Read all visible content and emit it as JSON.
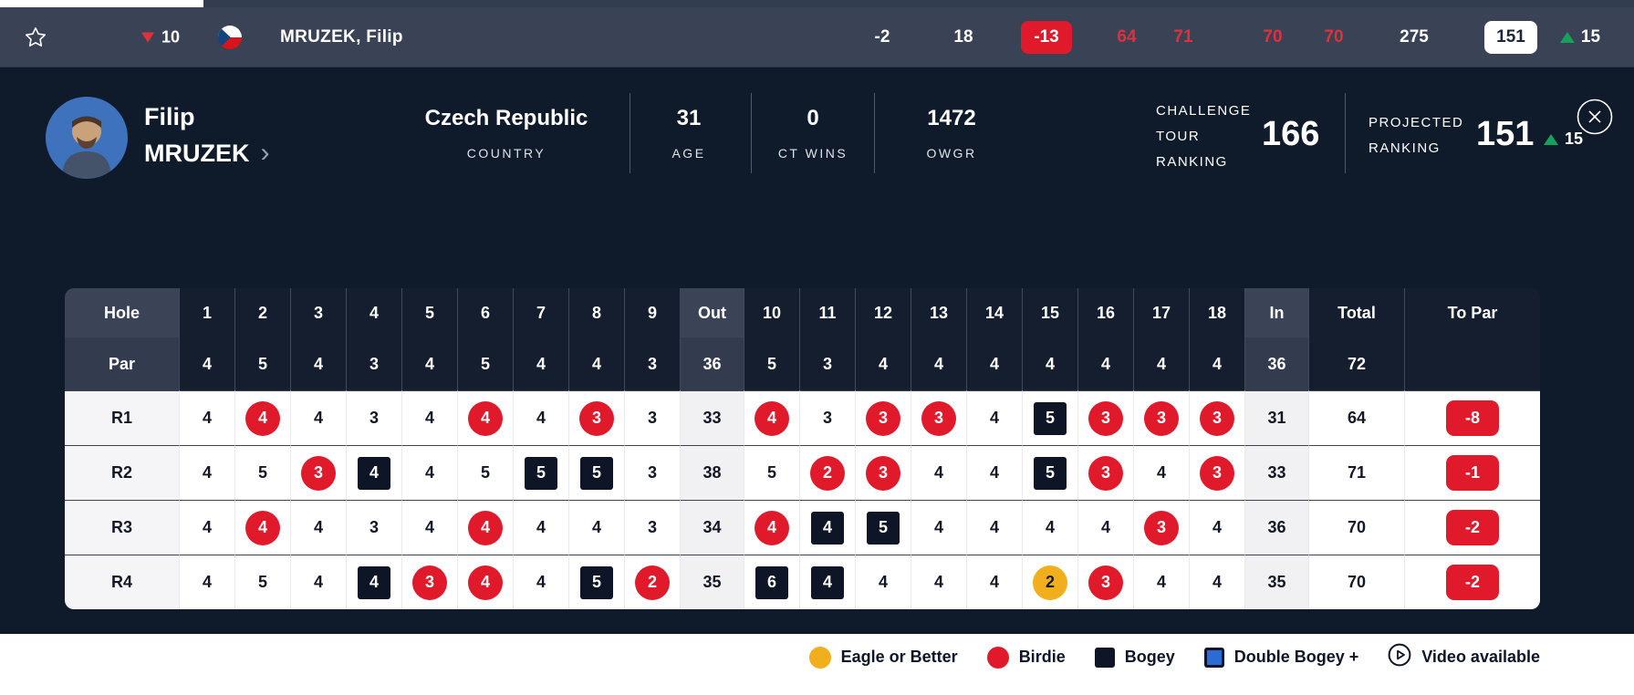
{
  "colors": {
    "accent_red": "#e01a2b",
    "red_text": "#e0303e",
    "navy_panel": "#0f1a2b",
    "bar_slate": "#3a4255",
    "eagle_yellow": "#f2af1d",
    "double_bogey_blue": "#2a6bd4",
    "positive_green": "#18a15c"
  },
  "top_bar": {
    "position_change": {
      "direction": "down",
      "value": "10"
    },
    "flag": "czech-republic",
    "player_name": "MRUZEK, Filip",
    "today": "-2",
    "thru": "18",
    "total_score": "-13",
    "rounds": [
      "64",
      "71",
      "70",
      "70"
    ],
    "strokes": "275",
    "projected_position": "151",
    "movement": {
      "direction": "up",
      "value": "15"
    }
  },
  "player_panel": {
    "first_name": "Filip",
    "last_name": "MRUZEK",
    "stats": [
      {
        "value": "Czech Republic",
        "label": "COUNTRY"
      },
      {
        "value": "31",
        "label": "AGE"
      },
      {
        "value": "0",
        "label": "CT WINS"
      },
      {
        "value": "1472",
        "label": "OWGR"
      }
    ],
    "challenge_tour_ranking": {
      "label": "CHALLENGE TOUR RANKING",
      "value": "166"
    },
    "projected_ranking": {
      "label": "PROJECTED RANKING",
      "value": "151",
      "movement": {
        "direction": "up",
        "value": "15"
      }
    }
  },
  "scorecard": {
    "header": {
      "label": "Hole",
      "holes": [
        "1",
        "2",
        "3",
        "4",
        "5",
        "6",
        "7",
        "8",
        "9",
        "10",
        "11",
        "12",
        "13",
        "14",
        "15",
        "16",
        "17",
        "18"
      ],
      "out": "Out",
      "in": "In",
      "total": "Total",
      "to_par": "To Par"
    },
    "par": {
      "label": "Par",
      "holes": [
        "4",
        "5",
        "4",
        "3",
        "4",
        "5",
        "4",
        "4",
        "3",
        "5",
        "3",
        "4",
        "4",
        "4",
        "4",
        "4",
        "4",
        "4"
      ],
      "out": "36",
      "in": "36",
      "total": "72",
      "to_par": ""
    },
    "rounds": [
      {
        "label": "R1",
        "holes": [
          {
            "v": "4",
            "m": "par"
          },
          {
            "v": "4",
            "m": "birdie"
          },
          {
            "v": "4",
            "m": "par"
          },
          {
            "v": "3",
            "m": "par"
          },
          {
            "v": "4",
            "m": "par"
          },
          {
            "v": "4",
            "m": "birdie"
          },
          {
            "v": "4",
            "m": "par"
          },
          {
            "v": "3",
            "m": "birdie"
          },
          {
            "v": "3",
            "m": "par"
          },
          {
            "v": "4",
            "m": "birdie"
          },
          {
            "v": "3",
            "m": "par"
          },
          {
            "v": "3",
            "m": "birdie"
          },
          {
            "v": "3",
            "m": "birdie"
          },
          {
            "v": "4",
            "m": "par"
          },
          {
            "v": "5",
            "m": "bogey"
          },
          {
            "v": "3",
            "m": "birdie"
          },
          {
            "v": "3",
            "m": "birdie"
          },
          {
            "v": "3",
            "m": "birdie"
          }
        ],
        "out": "33",
        "in": "31",
        "total": "64",
        "to_par": "-8"
      },
      {
        "label": "R2",
        "holes": [
          {
            "v": "4",
            "m": "par"
          },
          {
            "v": "5",
            "m": "par"
          },
          {
            "v": "3",
            "m": "birdie"
          },
          {
            "v": "4",
            "m": "bogey"
          },
          {
            "v": "4",
            "m": "par"
          },
          {
            "v": "5",
            "m": "par"
          },
          {
            "v": "5",
            "m": "bogey"
          },
          {
            "v": "5",
            "m": "bogey"
          },
          {
            "v": "3",
            "m": "par"
          },
          {
            "v": "5",
            "m": "par"
          },
          {
            "v": "2",
            "m": "birdie"
          },
          {
            "v": "3",
            "m": "birdie"
          },
          {
            "v": "4",
            "m": "par"
          },
          {
            "v": "4",
            "m": "par"
          },
          {
            "v": "5",
            "m": "bogey"
          },
          {
            "v": "3",
            "m": "birdie"
          },
          {
            "v": "4",
            "m": "par"
          },
          {
            "v": "3",
            "m": "birdie"
          }
        ],
        "out": "38",
        "in": "33",
        "total": "71",
        "to_par": "-1"
      },
      {
        "label": "R3",
        "holes": [
          {
            "v": "4",
            "m": "par"
          },
          {
            "v": "4",
            "m": "birdie"
          },
          {
            "v": "4",
            "m": "par"
          },
          {
            "v": "3",
            "m": "par"
          },
          {
            "v": "4",
            "m": "par"
          },
          {
            "v": "4",
            "m": "birdie"
          },
          {
            "v": "4",
            "m": "par"
          },
          {
            "v": "4",
            "m": "par"
          },
          {
            "v": "3",
            "m": "par"
          },
          {
            "v": "4",
            "m": "birdie"
          },
          {
            "v": "4",
            "m": "bogey"
          },
          {
            "v": "5",
            "m": "bogey"
          },
          {
            "v": "4",
            "m": "par"
          },
          {
            "v": "4",
            "m": "par"
          },
          {
            "v": "4",
            "m": "par"
          },
          {
            "v": "4",
            "m": "par"
          },
          {
            "v": "3",
            "m": "birdie"
          },
          {
            "v": "4",
            "m": "par"
          }
        ],
        "out": "34",
        "in": "36",
        "total": "70",
        "to_par": "-2"
      },
      {
        "label": "R4",
        "holes": [
          {
            "v": "4",
            "m": "par"
          },
          {
            "v": "5",
            "m": "par"
          },
          {
            "v": "4",
            "m": "par"
          },
          {
            "v": "4",
            "m": "bogey"
          },
          {
            "v": "3",
            "m": "birdie"
          },
          {
            "v": "4",
            "m": "birdie"
          },
          {
            "v": "4",
            "m": "par"
          },
          {
            "v": "5",
            "m": "bogey"
          },
          {
            "v": "2",
            "m": "birdie"
          },
          {
            "v": "6",
            "m": "bogey"
          },
          {
            "v": "4",
            "m": "bogey"
          },
          {
            "v": "4",
            "m": "par"
          },
          {
            "v": "4",
            "m": "par"
          },
          {
            "v": "4",
            "m": "par"
          },
          {
            "v": "2",
            "m": "eagle"
          },
          {
            "v": "3",
            "m": "birdie"
          },
          {
            "v": "4",
            "m": "par"
          },
          {
            "v": "4",
            "m": "par"
          }
        ],
        "out": "35",
        "in": "35",
        "total": "70",
        "to_par": "-2"
      }
    ]
  },
  "legend": {
    "items": [
      {
        "marker": "eagle",
        "label": "Eagle or Better"
      },
      {
        "marker": "birdie",
        "label": "Birdie"
      },
      {
        "marker": "bogey",
        "label": "Bogey"
      },
      {
        "marker": "double-bogey",
        "label": "Double Bogey +"
      },
      {
        "marker": "video",
        "label": "Video available"
      }
    ]
  }
}
